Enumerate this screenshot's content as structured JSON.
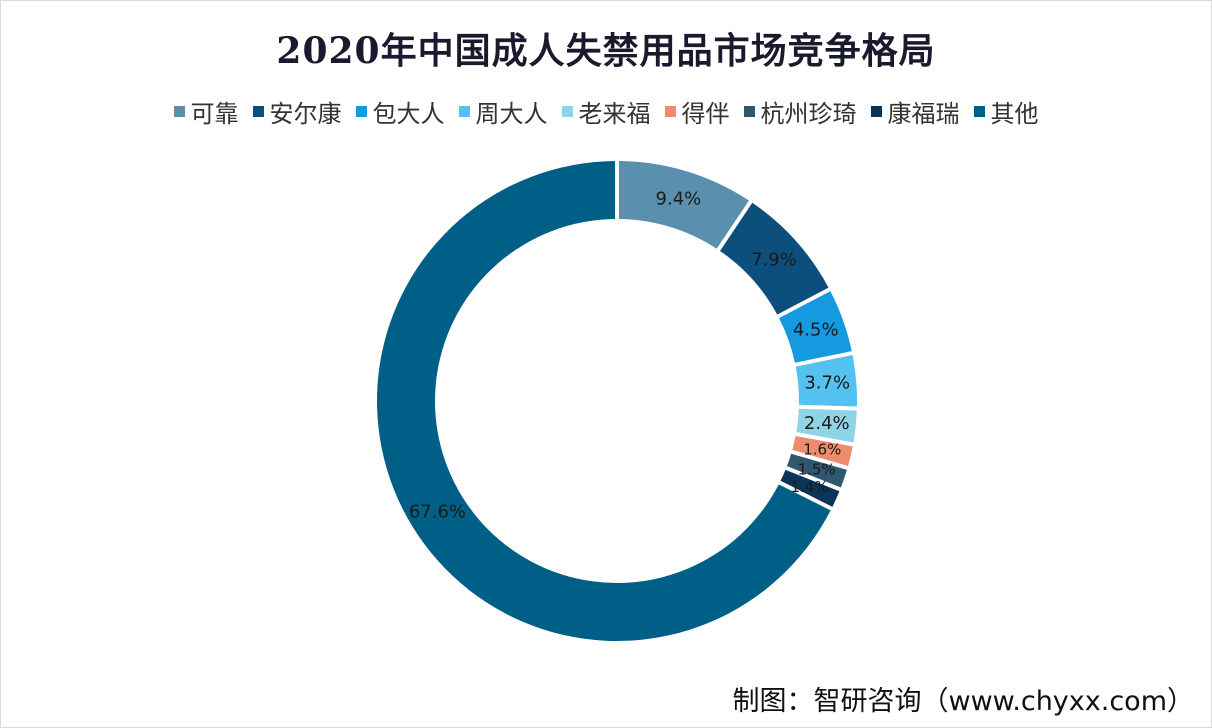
{
  "chart_data": {
    "type": "pie",
    "variant": "donut",
    "title": "2020年中国成人失禁用品市场竞争格局",
    "legend_position": "top",
    "categories": [
      "可靠",
      "安尔康",
      "包大人",
      "周大人",
      "老来福",
      "得伴",
      "杭州珍琦",
      "康福瑞",
      "其他"
    ],
    "values": [
      9.4,
      7.9,
      4.5,
      3.7,
      2.4,
      1.6,
      1.5,
      1.4,
      67.6
    ],
    "data_labels": [
      "9.4%",
      "7.9%",
      "4.5%",
      "3.7%",
      "2.4%",
      "1.6%",
      "1.5%",
      "1.4%",
      "67.6%"
    ],
    "colors": [
      "#5a8fad",
      "#0d4f7c",
      "#159ae0",
      "#53c2f0",
      "#8fd4e4",
      "#ee8a6d",
      "#2f5770",
      "#0b3558",
      "#005f86"
    ]
  },
  "footer": {
    "credit": "制图：智研咨询（www.chyxx.com）"
  }
}
